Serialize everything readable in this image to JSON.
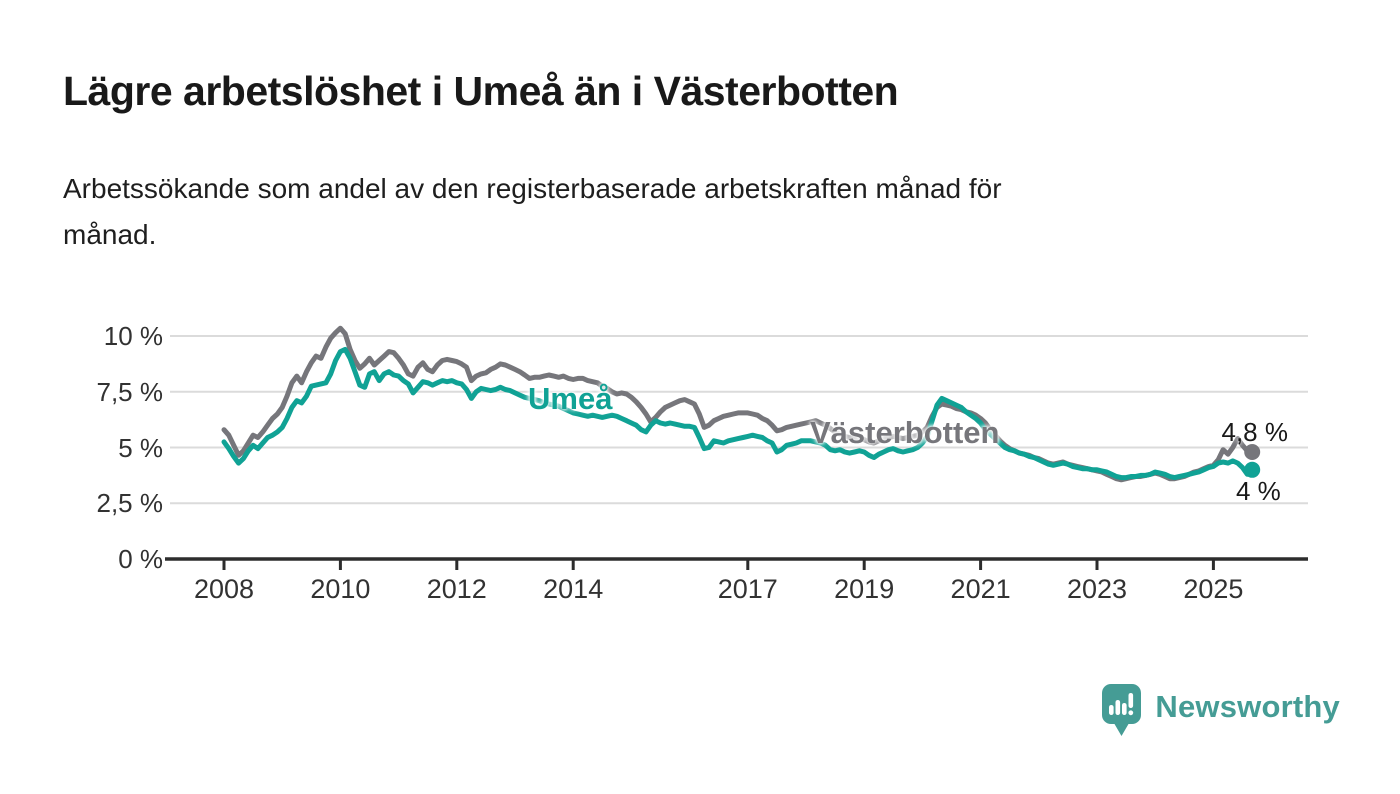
{
  "header": {
    "title": "Lägre arbetslöshet i Umeå än i Västerbotten",
    "subtitle_lines": [
      "Arbetssökande som andel av den registerbaserade arbetskraften månad för",
      "månad."
    ]
  },
  "chart_data": {
    "type": "line",
    "title": "Lägre arbetslöshet i Umeå än i Västerbotten",
    "xlabel": "",
    "ylabel": "Arbetssökande som andel av den registerbaserade arbetskraften",
    "x_start_year": 2008,
    "x_step_months": 1,
    "x_end": "2025-09",
    "xlim": [
      2007.0,
      2026.6
    ],
    "ylim": [
      0,
      11
    ],
    "grid": "horizontal",
    "legend_position": "inline-labels",
    "x_tick_years": [
      2008,
      2010,
      2012,
      2014,
      2017,
      2019,
      2021,
      2023,
      2025
    ],
    "x_tick_labels": [
      "2008",
      "2010",
      "2012",
      "2014",
      "2017",
      "2019",
      "2021",
      "2023",
      "2025"
    ],
    "y_tick_values": [
      0,
      2.5,
      5,
      7.5,
      10
    ],
    "y_tick_labels": [
      "0 %",
      "2,5 %",
      "5 %",
      "7,5 %",
      "10 %"
    ],
    "series": [
      {
        "name": "Västerbotten",
        "color": "#76767B",
        "end_label": "4,8 %",
        "end_value": 4.8,
        "values": [
          5.8,
          5.55,
          5.1,
          4.65,
          4.85,
          5.2,
          5.55,
          5.45,
          5.7,
          6.0,
          6.3,
          6.5,
          6.8,
          7.3,
          7.9,
          8.2,
          7.9,
          8.4,
          8.8,
          9.1,
          9.0,
          9.5,
          9.9,
          10.15,
          10.35,
          10.1,
          9.4,
          8.9,
          8.55,
          8.75,
          9.0,
          8.7,
          8.9,
          9.1,
          9.3,
          9.25,
          9.0,
          8.7,
          8.3,
          8.2,
          8.6,
          8.8,
          8.5,
          8.4,
          8.7,
          8.9,
          8.95,
          8.9,
          8.85,
          8.75,
          8.6,
          8.0,
          8.2,
          8.3,
          8.35,
          8.5,
          8.6,
          8.75,
          8.7,
          8.6,
          8.5,
          8.4,
          8.25,
          8.1,
          8.15,
          8.15,
          8.2,
          8.25,
          8.2,
          8.15,
          8.2,
          8.1,
          8.05,
          8.1,
          8.1,
          8.0,
          7.95,
          7.9,
          7.75,
          7.65,
          7.5,
          7.4,
          7.45,
          7.4,
          7.25,
          7.05,
          6.8,
          6.5,
          6.15,
          6.35,
          6.6,
          6.8,
          6.9,
          7.0,
          7.1,
          7.15,
          7.05,
          6.95,
          6.5,
          5.9,
          6.0,
          6.2,
          6.3,
          6.4,
          6.45,
          6.5,
          6.55,
          6.55,
          6.55,
          6.5,
          6.45,
          6.3,
          6.2,
          6.0,
          5.75,
          5.8,
          5.9,
          5.95,
          6.0,
          6.05,
          6.1,
          6.15,
          6.2,
          6.1,
          6.0,
          5.85,
          5.7,
          5.6,
          5.5,
          5.45,
          5.4,
          5.4,
          5.35,
          5.25,
          5.2,
          5.3,
          5.4,
          5.45,
          5.5,
          5.45,
          5.4,
          5.45,
          5.5,
          5.55,
          5.7,
          5.9,
          6.4,
          6.8,
          6.95,
          6.9,
          6.85,
          6.75,
          6.7,
          6.6,
          6.55,
          6.45,
          6.3,
          6.1,
          5.8,
          5.55,
          5.3,
          5.1,
          4.95,
          4.85,
          4.75,
          4.7,
          4.65,
          4.55,
          4.5,
          4.4,
          4.3,
          4.25,
          4.3,
          4.35,
          4.25,
          4.2,
          4.15,
          4.1,
          4.05,
          4.0,
          3.95,
          3.9,
          3.8,
          3.7,
          3.6,
          3.55,
          3.6,
          3.65,
          3.7,
          3.7,
          3.75,
          3.8,
          3.85,
          3.8,
          3.7,
          3.6,
          3.6,
          3.65,
          3.7,
          3.8,
          3.9,
          3.95,
          4.05,
          4.15,
          4.2,
          4.45,
          4.9,
          4.7,
          5.0,
          5.4,
          5.1,
          4.85,
          4.8
        ]
      },
      {
        "name": "Umeå",
        "color": "#10A295",
        "end_label": "4 %",
        "end_value": 4.0,
        "values": [
          5.25,
          4.95,
          4.6,
          4.3,
          4.5,
          4.85,
          5.1,
          4.95,
          5.2,
          5.45,
          5.55,
          5.7,
          5.9,
          6.3,
          6.8,
          7.1,
          7.0,
          7.3,
          7.75,
          7.8,
          7.85,
          7.9,
          8.3,
          8.9,
          9.3,
          9.4,
          9.0,
          8.4,
          7.8,
          7.7,
          8.3,
          8.4,
          8.0,
          8.3,
          8.4,
          8.25,
          8.2,
          8.0,
          7.85,
          7.45,
          7.7,
          7.95,
          7.9,
          7.8,
          7.9,
          8.0,
          7.95,
          8.0,
          7.9,
          7.85,
          7.6,
          7.2,
          7.5,
          7.65,
          7.6,
          7.55,
          7.6,
          7.7,
          7.6,
          7.55,
          7.45,
          7.35,
          7.25,
          7.2,
          7.15,
          7.1,
          7.0,
          6.95,
          6.9,
          6.85,
          6.75,
          6.65,
          6.55,
          6.5,
          6.45,
          6.4,
          6.45,
          6.4,
          6.35,
          6.4,
          6.45,
          6.4,
          6.3,
          6.2,
          6.1,
          6.0,
          5.8,
          5.7,
          6.0,
          6.2,
          6.1,
          6.05,
          6.1,
          6.05,
          6.0,
          5.95,
          5.95,
          5.9,
          5.45,
          4.95,
          5.0,
          5.3,
          5.25,
          5.2,
          5.3,
          5.35,
          5.4,
          5.45,
          5.5,
          5.55,
          5.5,
          5.45,
          5.3,
          5.2,
          4.8,
          4.9,
          5.1,
          5.15,
          5.2,
          5.3,
          5.3,
          5.3,
          5.25,
          5.2,
          5.1,
          4.9,
          4.85,
          4.9,
          4.8,
          4.75,
          4.8,
          4.85,
          4.8,
          4.65,
          4.55,
          4.7,
          4.8,
          4.9,
          4.95,
          4.85,
          4.8,
          4.85,
          4.9,
          5.0,
          5.2,
          5.5,
          6.2,
          6.9,
          7.2,
          7.1,
          7.0,
          6.9,
          6.8,
          6.6,
          6.45,
          6.3,
          6.1,
          5.8,
          5.6,
          5.4,
          5.2,
          5.0,
          4.9,
          4.85,
          4.75,
          4.7,
          4.6,
          4.55,
          4.45,
          4.35,
          4.25,
          4.2,
          4.25,
          4.3,
          4.25,
          4.15,
          4.1,
          4.05,
          4.05,
          4.0,
          4.0,
          3.95,
          3.9,
          3.8,
          3.7,
          3.65,
          3.65,
          3.7,
          3.7,
          3.75,
          3.75,
          3.8,
          3.9,
          3.85,
          3.8,
          3.7,
          3.65,
          3.7,
          3.75,
          3.8,
          3.85,
          3.9,
          4.0,
          4.1,
          4.15,
          4.3,
          4.35,
          4.3,
          4.4,
          4.3,
          4.1,
          3.8,
          4.0
        ]
      }
    ],
    "colors": {
      "grid": "#DBDBDB",
      "axis": "#2D2D2D",
      "tick_text": "#323232"
    }
  },
  "branding": {
    "logo_text": "Newsworthy",
    "logo_color": "#459C95",
    "logo_icon": "bar-chart-speech-bubble-icon"
  }
}
